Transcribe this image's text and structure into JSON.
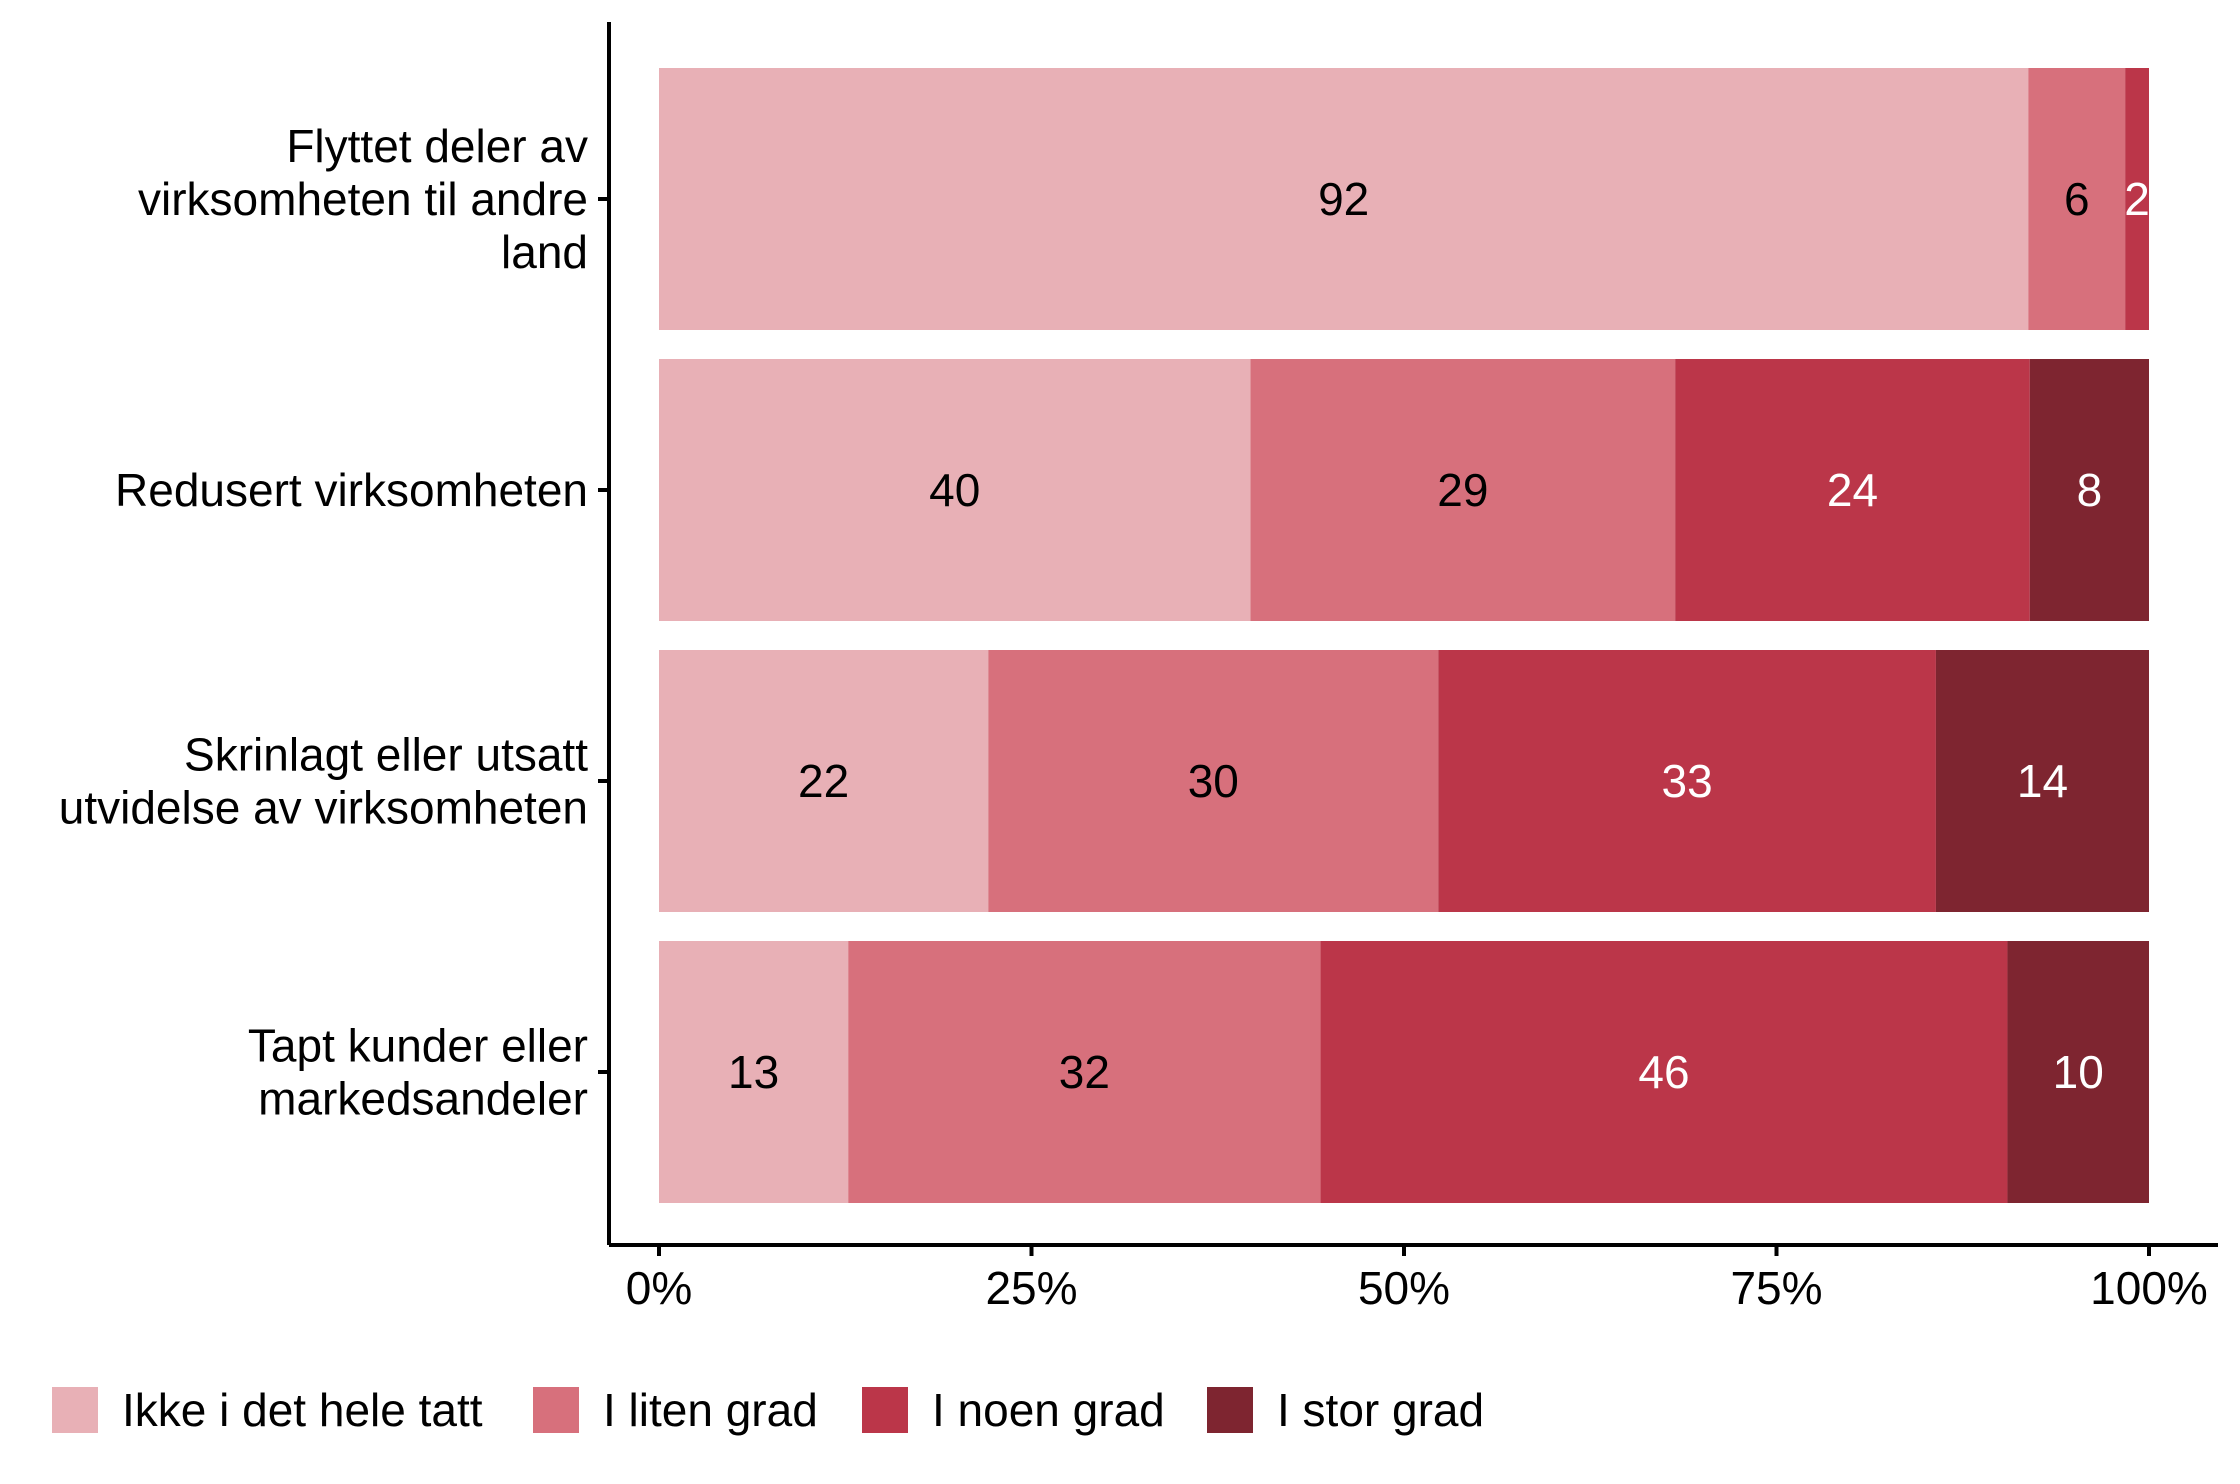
{
  "chart_data": {
    "type": "bar",
    "orientation": "horizontal",
    "stacked": true,
    "normalized": true,
    "title": "",
    "xlabel": "",
    "ylabel": "",
    "xlim": [
      0,
      100
    ],
    "x_ticks": [
      "0%",
      "25%",
      "50%",
      "75%",
      "100%"
    ],
    "x_tick_values": [
      0,
      25,
      50,
      75,
      100
    ],
    "categories": [
      {
        "lines": [
          "Flyttet deler av",
          "virksomheten til andre",
          "land"
        ]
      },
      {
        "lines": [
          "Redusert virksomheten"
        ]
      },
      {
        "lines": [
          "Skrinlagt eller utsatt",
          "utvidelse av virksomheten"
        ]
      },
      {
        "lines": [
          "Tapt kunder eller",
          "markedsandeler"
        ]
      }
    ],
    "series": [
      {
        "name": "Ikke i det hele tatt",
        "color": "#e8b0b6",
        "label_color": "#000000",
        "values": [
          91.9,
          39.7,
          22.1,
          12.7
        ]
      },
      {
        "name": "I liten grad",
        "color": "#d7707c",
        "label_color": "#000000",
        "values": [
          6.5,
          28.5,
          30.2,
          31.7
        ]
      },
      {
        "name": "I noen grad",
        "color": "#bb3649",
        "label_color": "#ffffff",
        "values": [
          1.6,
          23.8,
          33.4,
          46.1
        ]
      },
      {
        "name": "I stor grad",
        "color": "#7e2530",
        "label_color": "#ffffff",
        "values": [
          0,
          8.0,
          14.3,
          9.5
        ]
      }
    ],
    "data_labels": [
      [
        "92",
        "6",
        "2",
        ""
      ],
      [
        "40",
        "29",
        "24",
        "8"
      ],
      [
        "22",
        "30",
        "33",
        "14"
      ],
      [
        "13",
        "32",
        "46",
        "10"
      ]
    ],
    "legend_position": "bottom",
    "grid": false
  }
}
